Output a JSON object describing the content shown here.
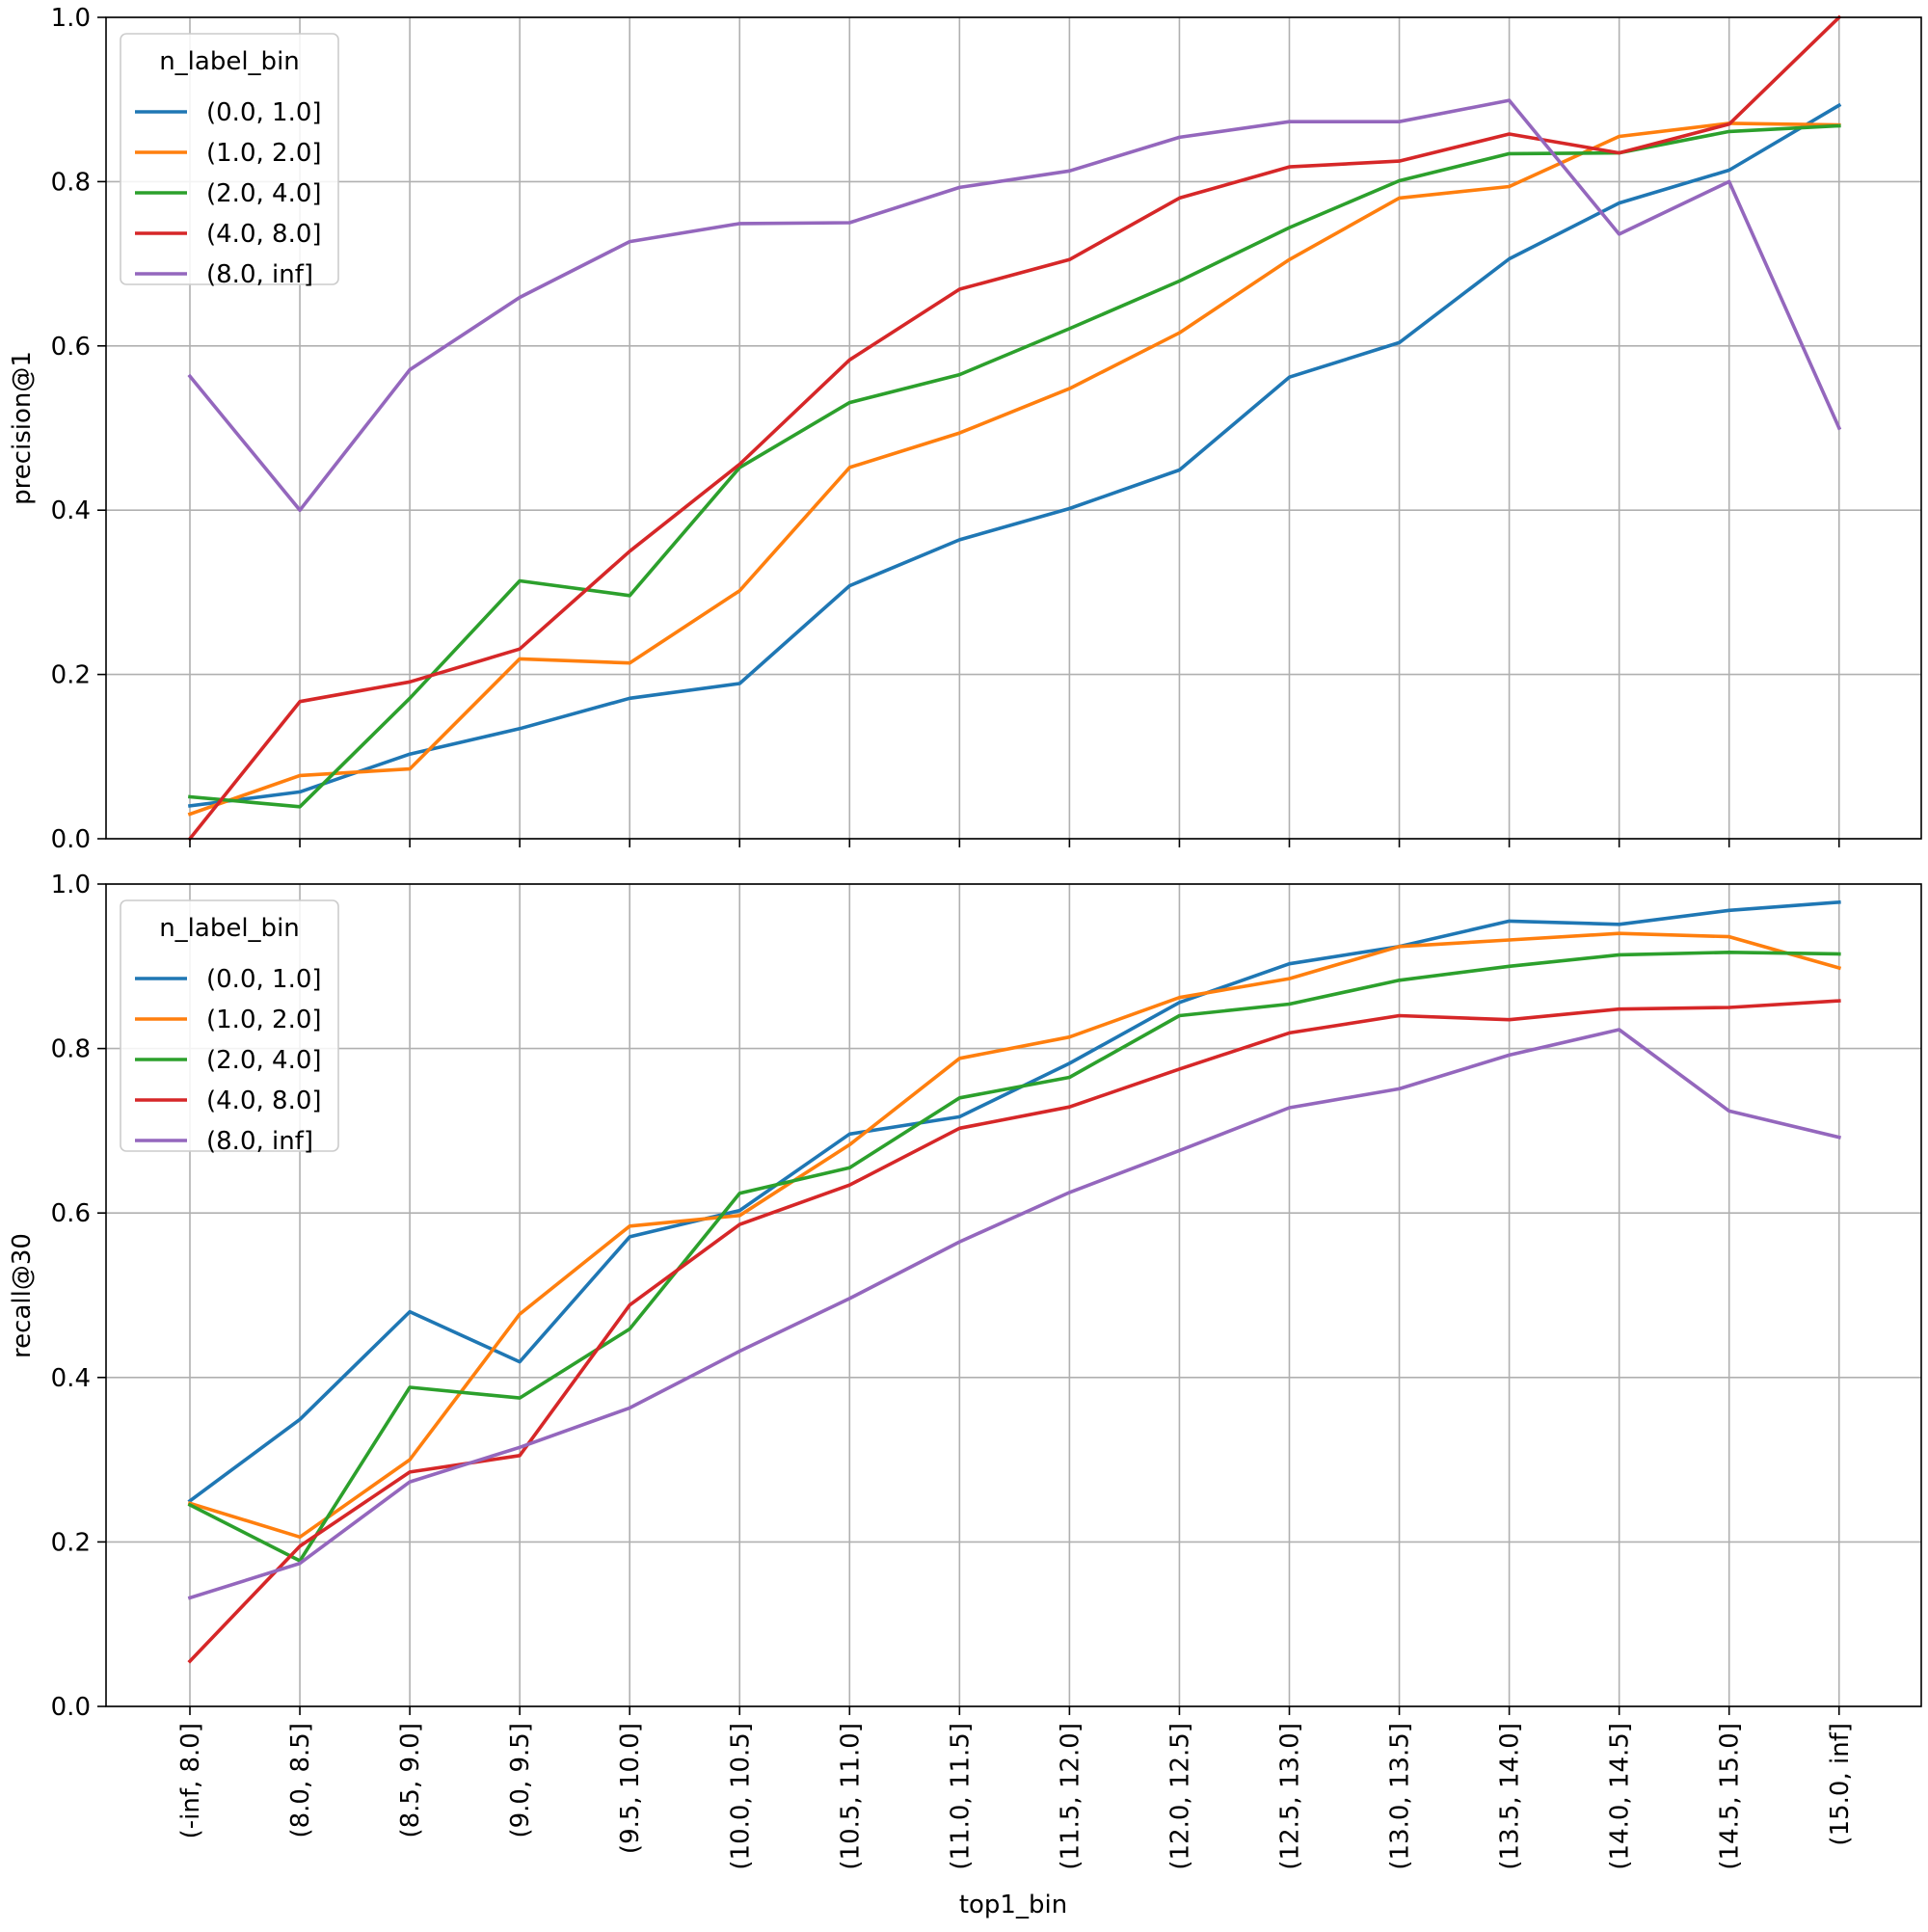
{
  "chart_data": [
    {
      "type": "line",
      "ylabel": "precision@1",
      "ylim": [
        0.0,
        1.0
      ],
      "yticks": [
        "0.0",
        "0.2",
        "0.4",
        "0.6",
        "0.8",
        "1.0"
      ],
      "grid": true,
      "legend_title": "n_label_bin",
      "legend_placement": "upper-left",
      "categories": [
        "(-inf, 8.0]",
        "(8.0, 8.5]",
        "(8.5, 9.0]",
        "(9.0, 9.5]",
        "(9.5, 10.0]",
        "(10.0, 10.5]",
        "(10.5, 11.0]",
        "(11.0, 11.5]",
        "(11.5, 12.0]",
        "(12.0, 12.5]",
        "(12.5, 13.0]",
        "(13.0, 13.5]",
        "(13.5, 14.0]",
        "(14.0, 14.5]",
        "(14.5, 15.0]",
        "(15.0, inf]"
      ],
      "series": [
        {
          "name": "(0.0, 1.0]",
          "color": "#1f77b4",
          "values": [
            0.04,
            0.057,
            0.103,
            0.134,
            0.171,
            0.189,
            0.308,
            0.364,
            0.402,
            0.449,
            0.562,
            0.604,
            0.706,
            0.774,
            0.814,
            0.893
          ]
        },
        {
          "name": "(1.0, 2.0]",
          "color": "#ff7f0e",
          "values": [
            0.03,
            0.077,
            0.085,
            0.219,
            0.214,
            0.302,
            0.452,
            0.494,
            0.548,
            0.616,
            0.705,
            0.78,
            0.794,
            0.855,
            0.871,
            0.869
          ]
        },
        {
          "name": "(2.0, 4.0]",
          "color": "#2ca02c",
          "values": [
            0.051,
            0.039,
            0.171,
            0.314,
            0.296,
            0.452,
            0.531,
            0.565,
            0.621,
            0.679,
            0.744,
            0.801,
            0.834,
            0.835,
            0.861,
            0.868
          ]
        },
        {
          "name": "(4.0, 8.0]",
          "color": "#d62728",
          "values": [
            0.0,
            0.167,
            0.191,
            0.231,
            0.35,
            0.456,
            0.583,
            0.669,
            0.705,
            0.78,
            0.818,
            0.825,
            0.858,
            0.835,
            0.87,
            1.0
          ]
        },
        {
          "name": "(8.0, inf]",
          "color": "#9467bd",
          "values": [
            0.563,
            0.4,
            0.571,
            0.659,
            0.727,
            0.749,
            0.75,
            0.793,
            0.813,
            0.854,
            0.873,
            0.873,
            0.899,
            0.736,
            0.8,
            0.5
          ]
        }
      ]
    },
    {
      "type": "line",
      "xlabel": "top1_bin",
      "ylabel": "recall@30",
      "ylim": [
        0.0,
        1.0
      ],
      "yticks": [
        "0.0",
        "0.2",
        "0.4",
        "0.6",
        "0.8",
        "1.0"
      ],
      "grid": true,
      "legend_title": "n_label_bin",
      "legend_placement": "upper-left",
      "categories": [
        "(-inf, 8.0]",
        "(8.0, 8.5]",
        "(8.5, 9.0]",
        "(9.0, 9.5]",
        "(9.5, 10.0]",
        "(10.0, 10.5]",
        "(10.5, 11.0]",
        "(11.0, 11.5]",
        "(11.5, 12.0]",
        "(12.0, 12.5]",
        "(12.5, 13.0]",
        "(13.0, 13.5]",
        "(13.5, 14.0]",
        "(14.0, 14.5]",
        "(14.5, 15.0]",
        "(15.0, inf]"
      ],
      "series": [
        {
          "name": "(0.0, 1.0]",
          "color": "#1f77b4",
          "values": [
            0.25,
            0.349,
            0.48,
            0.419,
            0.571,
            0.603,
            0.696,
            0.717,
            0.782,
            0.856,
            0.903,
            0.924,
            0.955,
            0.951,
            0.968,
            0.978
          ]
        },
        {
          "name": "(1.0, 2.0]",
          "color": "#ff7f0e",
          "values": [
            0.247,
            0.206,
            0.3,
            0.477,
            0.584,
            0.597,
            0.683,
            0.788,
            0.814,
            0.862,
            0.885,
            0.924,
            0.932,
            0.94,
            0.936,
            0.898
          ]
        },
        {
          "name": "(2.0, 4.0]",
          "color": "#2ca02c",
          "values": [
            0.245,
            0.177,
            0.388,
            0.375,
            0.459,
            0.624,
            0.655,
            0.74,
            0.765,
            0.84,
            0.854,
            0.883,
            0.9,
            0.914,
            0.917,
            0.915
          ]
        },
        {
          "name": "(4.0, 8.0]",
          "color": "#d62728",
          "values": [
            0.055,
            0.195,
            0.285,
            0.305,
            0.488,
            0.586,
            0.634,
            0.703,
            0.729,
            0.775,
            0.819,
            0.84,
            0.835,
            0.848,
            0.85,
            0.858
          ]
        },
        {
          "name": "(8.0, inf]",
          "color": "#9467bd",
          "values": [
            0.132,
            0.174,
            0.273,
            0.315,
            0.363,
            0.432,
            0.496,
            0.565,
            0.625,
            0.676,
            0.728,
            0.751,
            0.792,
            0.823,
            0.724,
            0.692
          ]
        }
      ]
    }
  ]
}
